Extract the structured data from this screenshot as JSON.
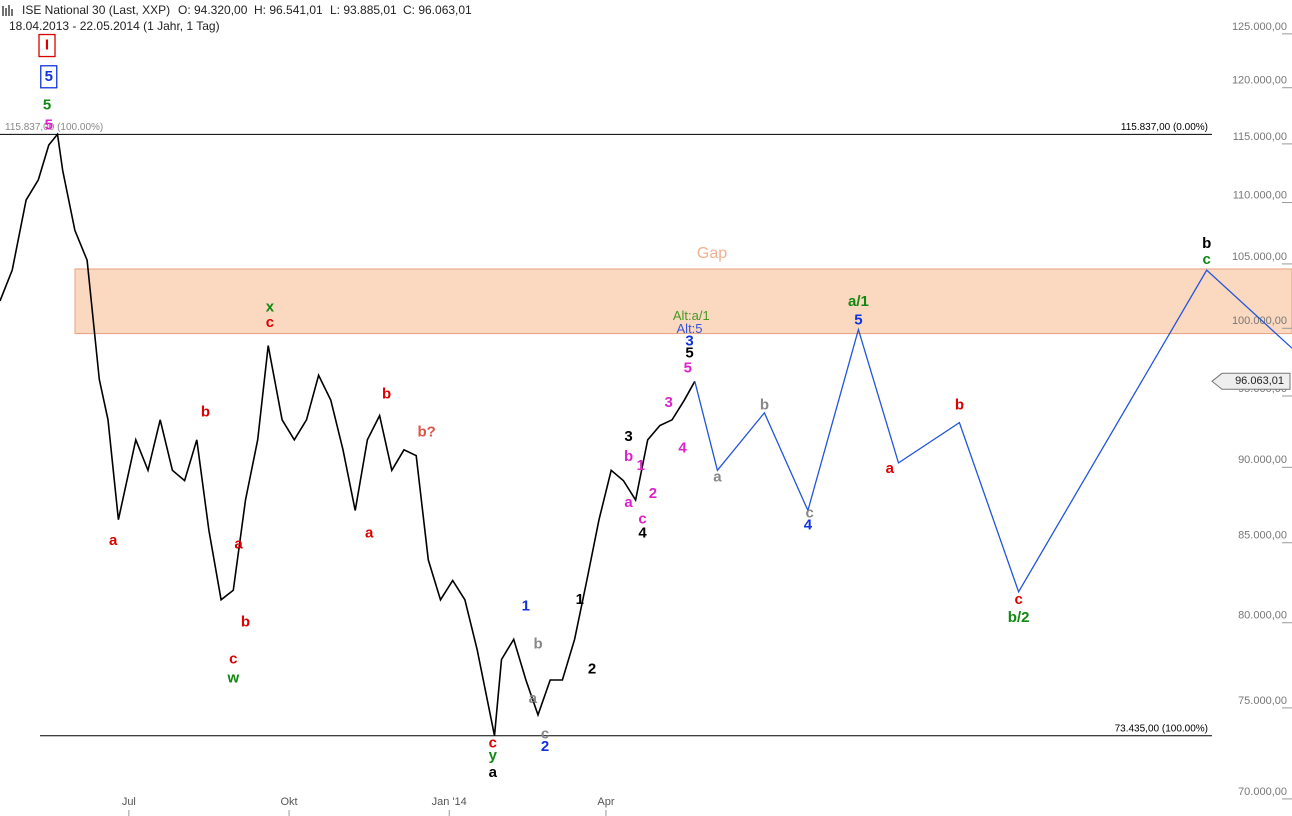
{
  "chart_data": {
    "type": "line",
    "header": {
      "title": "ISE National 30 (Last, XXP)",
      "open": "O: 94.320,00",
      "high": "H: 96.541,01",
      "low": "L: 93.885,01",
      "close": "C: 96.063,01",
      "range": "18.04.2013 - 22.05.2014 (1 Jahr, 1 Tag)"
    },
    "log_scale": true,
    "xlim": [
      "2013-04-18",
      "2015-04-30"
    ],
    "ylim": [
      69100,
      128250
    ],
    "xticks": [
      {
        "value": "2013-07-01",
        "label": "Jul"
      },
      {
        "value": "2013-10-01",
        "label": "Okt"
      },
      {
        "value": "2014-01-01",
        "label": "Jan '14"
      },
      {
        "value": "2014-04-01",
        "label": "Apr"
      }
    ],
    "yticks": [
      {
        "value": 70000,
        "label": "70.000,00"
      },
      {
        "value": 75000,
        "label": "75.000,00"
      },
      {
        "value": 80000,
        "label": "80.000,00"
      },
      {
        "value": 85000,
        "label": "85.000,00"
      },
      {
        "value": 90000,
        "label": "90.000,00"
      },
      {
        "value": 95000,
        "label": "95.000,00"
      },
      {
        "value": 100000,
        "label": "100.000,00"
      },
      {
        "value": 105000,
        "label": "105.000,00"
      },
      {
        "value": 110000,
        "label": "110.000,00"
      },
      {
        "value": 115000,
        "label": "115.000,00"
      },
      {
        "value": 120000,
        "label": "120.000,00"
      },
      {
        "value": 125000,
        "label": "125.000,00"
      }
    ],
    "gap": {
      "label": "Gap",
      "range": [
        99600,
        104600
      ],
      "color": "#fbd9c0"
    },
    "ref_lines": [
      {
        "value": 115837,
        "labels": [
          "115.837,00 (0.00%)",
          "115.837,00 (100.00%)"
        ]
      },
      {
        "value": 73435,
        "labels": [
          "73.435,00 (100.00%)"
        ]
      }
    ],
    "last_price": {
      "value": 96063.01,
      "label": "96.063,01"
    },
    "series": [
      {
        "color": "#000000",
        "x": [
          "2013-04-18",
          "2013-04-25",
          "2013-05-03",
          "2013-05-10",
          "2013-05-16",
          "2013-05-21",
          "2013-05-24",
          "2013-05-31",
          "2013-06-07",
          "2013-06-14",
          "2013-06-19",
          "2013-06-25",
          "2013-07-05",
          "2013-07-12",
          "2013-07-19",
          "2013-07-26",
          "2013-08-02",
          "2013-08-09",
          "2013-08-16",
          "2013-08-23",
          "2013-08-30",
          "2013-09-06",
          "2013-09-13",
          "2013-09-19",
          "2013-09-27",
          "2013-10-04",
          "2013-10-11",
          "2013-10-18",
          "2013-10-25",
          "2013-11-01",
          "2013-11-08",
          "2013-11-15",
          "2013-11-22",
          "2013-11-29",
          "2013-12-06",
          "2013-12-13",
          "2013-12-20",
          "2013-12-27",
          "2014-01-03",
          "2014-01-10",
          "2014-01-17",
          "2014-01-27",
          "2014-01-31",
          "2014-02-07",
          "2014-02-14",
          "2014-02-21",
          "2014-02-28",
          "2014-03-07",
          "2014-03-14",
          "2014-03-21",
          "2014-03-28",
          "2014-04-04",
          "2014-04-11",
          "2014-04-18",
          "2014-04-25",
          "2014-05-02",
          "2014-05-09",
          "2014-05-16",
          "2014-05-22"
        ],
        "values": [
          102100,
          104500,
          110200,
          111900,
          114900,
          115837,
          112700,
          107700,
          105300,
          96200,
          93300,
          86500,
          91900,
          89800,
          93300,
          89800,
          89100,
          91900,
          85800,
          81400,
          82000,
          87800,
          91900,
          98700,
          93300,
          91900,
          93300,
          96500,
          94700,
          91200,
          87100,
          91900,
          93600,
          89800,
          91200,
          90800,
          83900,
          81400,
          82600,
          81400,
          78400,
          73435,
          77800,
          79000,
          76600,
          74600,
          76600,
          76600,
          79000,
          82600,
          86500,
          89800,
          89100,
          87800,
          91900,
          92900,
          93300,
          94700,
          96063.01
        ]
      },
      {
        "color": "#2255dd",
        "x": [
          "2014-05-22",
          "2014-06-04",
          "2014-07-01",
          "2014-07-26",
          "2014-08-24",
          "2014-09-16",
          "2014-10-21",
          "2014-11-24",
          "2015-03-12",
          "2015-04-30"
        ],
        "values": [
          96063.01,
          89800,
          93800,
          87100,
          99900,
          90300,
          93100,
          81900,
          104500,
          98500
        ]
      }
    ],
    "annotations": [
      {
        "text": "I",
        "color": "#dd0000",
        "x": "2013-05-15",
        "y": 123900,
        "box": true
      },
      {
        "text": "5",
        "color": "#1133dd",
        "x": "2013-05-16",
        "y": 121000,
        "box": true
      },
      {
        "text": "5",
        "color": "#118811",
        "x": "2013-05-15",
        "y": 118400
      },
      {
        "text": "5",
        "color": "#dd22cc",
        "x": "2013-05-16",
        "y": 116600
      },
      {
        "text": "x",
        "color": "#118811",
        "x": "2013-09-20",
        "y": 101600
      },
      {
        "text": "c",
        "color": "#dd0000",
        "x": "2013-09-20",
        "y": 100400
      },
      {
        "text": "b",
        "color": "#dd0000",
        "x": "2013-08-14",
        "y": 93800
      },
      {
        "text": "a",
        "color": "#dd0000",
        "x": "2013-06-22",
        "y": 85100
      },
      {
        "text": "a",
        "color": "#dd0000",
        "x": "2013-09-02",
        "y": 84900
      },
      {
        "text": "b",
        "color": "#dd0000",
        "x": "2013-09-06",
        "y": 80000
      },
      {
        "text": "c",
        "color": "#dd0000",
        "x": "2013-08-30",
        "y": 77800
      },
      {
        "text": "w",
        "color": "#118811",
        "x": "2013-08-30",
        "y": 76700
      },
      {
        "text": "b",
        "color": "#dd0000",
        "x": "2013-11-26",
        "y": 95100
      },
      {
        "text": "b?",
        "color": "#dd5544",
        "x": "2013-12-19",
        "y": 92400
      },
      {
        "text": "a",
        "color": "#dd0000",
        "x": "2013-11-16",
        "y": 85600
      },
      {
        "text": "c",
        "color": "#dd0000",
        "x": "2014-01-26",
        "y": 73000
      },
      {
        "text": "y",
        "color": "#118811",
        "x": "2014-01-26",
        "y": 72300
      },
      {
        "text": "a",
        "color": "#000000",
        "x": "2014-01-26",
        "y": 71400
      },
      {
        "text": "1",
        "color": "#1133dd",
        "x": "2014-02-14",
        "y": 81000
      },
      {
        "text": "b",
        "color": "#888888",
        "x": "2014-02-21",
        "y": 78700
      },
      {
        "text": "a",
        "color": "#888888",
        "x": "2014-02-18",
        "y": 75500
      },
      {
        "text": "c",
        "color": "#888888",
        "x": "2014-02-25",
        "y": 73500
      },
      {
        "text": "2",
        "color": "#1133dd",
        "x": "2014-02-25",
        "y": 72800
      },
      {
        "text": "1",
        "color": "#000000",
        "x": "2014-03-17",
        "y": 81400
      },
      {
        "text": "2",
        "color": "#000000",
        "x": "2014-03-24",
        "y": 77200
      },
      {
        "text": "3",
        "color": "#000000",
        "x": "2014-04-14",
        "y": 92100
      },
      {
        "text": "4",
        "color": "#000000",
        "x": "2014-04-22",
        "y": 85600
      },
      {
        "text": "b",
        "color": "#dd22cc",
        "x": "2014-04-14",
        "y": 90700
      },
      {
        "text": "1",
        "color": "#dd22cc",
        "x": "2014-04-21",
        "y": 90100
      },
      {
        "text": "a",
        "color": "#dd22cc",
        "x": "2014-04-14",
        "y": 87600
      },
      {
        "text": "2",
        "color": "#dd22cc",
        "x": "2014-04-28",
        "y": 88200
      },
      {
        "text": "c",
        "color": "#dd22cc",
        "x": "2014-04-22",
        "y": 86500
      },
      {
        "text": "3",
        "color": "#dd22cc",
        "x": "2014-05-07",
        "y": 94500
      },
      {
        "text": "4",
        "color": "#dd22cc",
        "x": "2014-05-15",
        "y": 91300
      },
      {
        "text": "5",
        "color": "#dd22cc",
        "x": "2014-05-18",
        "y": 97000
      },
      {
        "text": "5",
        "color": "#000000",
        "x": "2014-05-19",
        "y": 98100
      },
      {
        "text": "3",
        "color": "#1133dd",
        "x": "2014-05-19",
        "y": 99000
      },
      {
        "text": "Alt:5",
        "color": "#3355dd",
        "x": "2014-05-19",
        "y": 99900
      },
      {
        "text": "Alt:a/1",
        "color": "#449922",
        "x": "2014-05-20",
        "y": 100900
      },
      {
        "text": "a",
        "color": "#888888",
        "x": "2014-06-04",
        "y": 89300
      },
      {
        "text": "b",
        "color": "#888888",
        "x": "2014-07-01",
        "y": 94300
      },
      {
        "text": "c",
        "color": "#888888",
        "x": "2014-07-27",
        "y": 86900
      },
      {
        "text": "4",
        "color": "#1133dd",
        "x": "2014-07-26",
        "y": 86100
      },
      {
        "text": "a/1",
        "color": "#118811",
        "x": "2014-08-24",
        "y": 102000
      },
      {
        "text": "5",
        "color": "#1133dd",
        "x": "2014-08-24",
        "y": 100600
      },
      {
        "text": "a",
        "color": "#dd0000",
        "x": "2014-09-11",
        "y": 89900
      },
      {
        "text": "b",
        "color": "#dd0000",
        "x": "2014-10-21",
        "y": 94300
      },
      {
        "text": "c",
        "color": "#dd0000",
        "x": "2014-11-24",
        "y": 81400
      },
      {
        "text": "b/2",
        "color": "#118811",
        "x": "2014-11-24",
        "y": 80300
      },
      {
        "text": "c",
        "color": "#118811",
        "x": "2015-03-12",
        "y": 105300
      },
      {
        "text": "b",
        "color": "#000000",
        "x": "2015-03-12",
        "y": 106600
      }
    ]
  }
}
